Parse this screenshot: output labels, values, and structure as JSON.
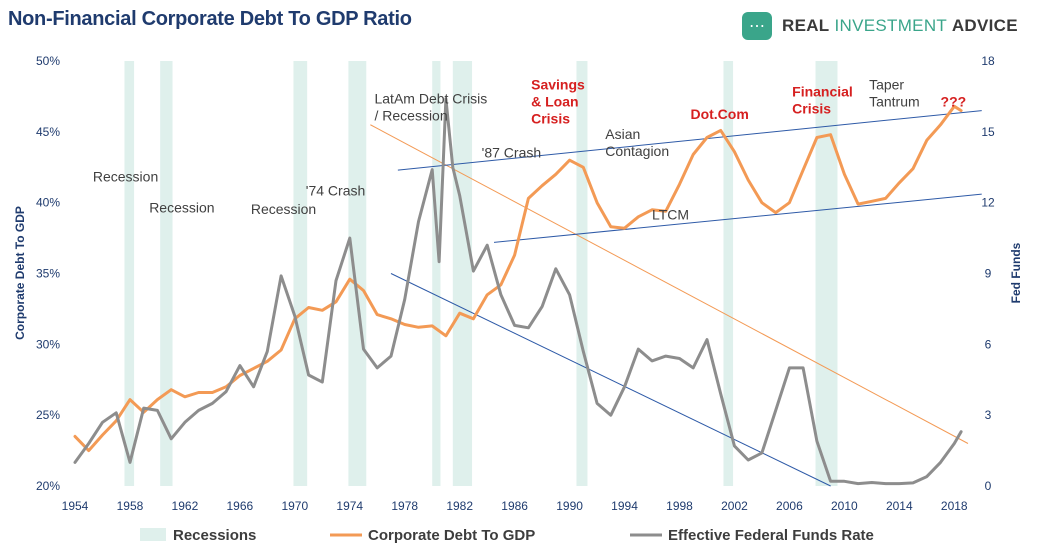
{
  "header": {
    "title": "Non-Financial Corporate Debt To GDP Ratio",
    "logo_text": "REAL INVESTMENT ADVICE",
    "logo_words": [
      "REAL",
      "INVESTMENT",
      "ADVICE"
    ],
    "logo_icon": "chat-bubble-icon",
    "brand_color": "#3aa58a"
  },
  "chart_data": {
    "type": "line",
    "title": "Non-Financial Corporate Debt To GDP Ratio",
    "x_ticks": [
      "1954",
      "1958",
      "1962",
      "1966",
      "1970",
      "1974",
      "1978",
      "1982",
      "1986",
      "1990",
      "1994",
      "1998",
      "2002",
      "2006",
      "2010",
      "2014",
      "2018"
    ],
    "xlim": [
      1954,
      2019
    ],
    "y_left_label": "Corporate Debt To GDP",
    "y_left_ticks": [
      "20%",
      "25%",
      "30%",
      "35%",
      "40%",
      "45%",
      "50%"
    ],
    "y_left_lim": [
      20,
      50
    ],
    "y_right_label": "Fed Funds",
    "y_right_ticks": [
      "0",
      "3",
      "6",
      "9",
      "12",
      "15",
      "18"
    ],
    "y_right_lim": [
      0,
      18
    ],
    "grid": false,
    "legend_position": "bottom",
    "colors": {
      "debt": "#f39a55",
      "fed": "#8d8d8d",
      "recession": "#dff0ec",
      "trend_orange": "#f39a55",
      "trend_blue": "#2e5aa7",
      "axis": "#1f3b6e",
      "annotation_red": "#d62020"
    },
    "legend": [
      "Recessions",
      "Corporate Debt To GDP",
      "Effective Federal Funds Rate"
    ],
    "recessions": [
      [
        1957.6,
        1958.3
      ],
      [
        1960.2,
        1961.1
      ],
      [
        1969.9,
        1970.9
      ],
      [
        1973.9,
        1975.2
      ],
      [
        1980.0,
        1980.6
      ],
      [
        1981.5,
        1982.9
      ],
      [
        1990.5,
        1991.3
      ],
      [
        2001.2,
        2001.9
      ],
      [
        2007.9,
        2009.5
      ]
    ],
    "series": [
      {
        "name": "Corporate Debt To GDP",
        "axis": "left",
        "points": [
          [
            1954,
            23.5
          ],
          [
            1955,
            22.5
          ],
          [
            1956,
            23.6
          ],
          [
            1957,
            24.6
          ],
          [
            1958,
            26.1
          ],
          [
            1959,
            25.2
          ],
          [
            1960,
            26.1
          ],
          [
            1961,
            26.8
          ],
          [
            1962,
            26.3
          ],
          [
            1963,
            26.6
          ],
          [
            1964,
            26.6
          ],
          [
            1965,
            27.0
          ],
          [
            1966,
            27.8
          ],
          [
            1967,
            28.3
          ],
          [
            1968,
            28.8
          ],
          [
            1969,
            29.6
          ],
          [
            1970,
            31.8
          ],
          [
            1971,
            32.6
          ],
          [
            1972,
            32.4
          ],
          [
            1973,
            33.0
          ],
          [
            1974,
            34.6
          ],
          [
            1975,
            33.8
          ],
          [
            1976,
            32.1
          ],
          [
            1977,
            31.8
          ],
          [
            1978,
            31.4
          ],
          [
            1979,
            31.2
          ],
          [
            1980,
            31.3
          ],
          [
            1981,
            30.6
          ],
          [
            1982,
            32.2
          ],
          [
            1983,
            31.8
          ],
          [
            1984,
            33.5
          ],
          [
            1985,
            34.2
          ],
          [
            1986,
            36.3
          ],
          [
            1987,
            40.3
          ],
          [
            1988,
            41.2
          ],
          [
            1989,
            42.0
          ],
          [
            1990,
            43.0
          ],
          [
            1991,
            42.5
          ],
          [
            1992,
            40.0
          ],
          [
            1993,
            38.3
          ],
          [
            1994,
            38.2
          ],
          [
            1995,
            39.0
          ],
          [
            1996,
            39.5
          ],
          [
            1997,
            39.4
          ],
          [
            1998,
            41.3
          ],
          [
            1999,
            43.4
          ],
          [
            2000,
            44.6
          ],
          [
            2001,
            45.1
          ],
          [
            2002,
            43.6
          ],
          [
            2003,
            41.6
          ],
          [
            2004,
            40.0
          ],
          [
            2005,
            39.3
          ],
          [
            2006,
            40.0
          ],
          [
            2007,
            42.3
          ],
          [
            2008,
            44.6
          ],
          [
            2009,
            44.8
          ],
          [
            2010,
            42.0
          ],
          [
            2011,
            39.9
          ],
          [
            2012,
            40.1
          ],
          [
            2013,
            40.3
          ],
          [
            2014,
            41.4
          ],
          [
            2015,
            42.4
          ],
          [
            2016,
            44.4
          ],
          [
            2017,
            45.5
          ],
          [
            2018,
            46.8
          ],
          [
            2018.5,
            46.5
          ]
        ]
      },
      {
        "name": "Effective Federal Funds Rate",
        "axis": "right",
        "points": [
          [
            1954,
            1.0
          ],
          [
            1955,
            1.8
          ],
          [
            1956,
            2.7
          ],
          [
            1957,
            3.1
          ],
          [
            1958,
            1.0
          ],
          [
            1959,
            3.3
          ],
          [
            1960,
            3.2
          ],
          [
            1961,
            2.0
          ],
          [
            1962,
            2.7
          ],
          [
            1963,
            3.2
          ],
          [
            1964,
            3.5
          ],
          [
            1965,
            4.0
          ],
          [
            1966,
            5.1
          ],
          [
            1967,
            4.2
          ],
          [
            1968,
            5.7
          ],
          [
            1969,
            8.9
          ],
          [
            1970,
            7.2
          ],
          [
            1971,
            4.7
          ],
          [
            1972,
            4.4
          ],
          [
            1973,
            8.7
          ],
          [
            1974,
            10.5
          ],
          [
            1975,
            5.8
          ],
          [
            1976,
            5.0
          ],
          [
            1977,
            5.5
          ],
          [
            1978,
            7.9
          ],
          [
            1979,
            11.2
          ],
          [
            1980,
            13.4
          ],
          [
            1980.5,
            9.5
          ],
          [
            1981,
            16.4
          ],
          [
            1981.5,
            13.5
          ],
          [
            1982,
            12.3
          ],
          [
            1983,
            9.1
          ],
          [
            1984,
            10.2
          ],
          [
            1985,
            8.1
          ],
          [
            1986,
            6.8
          ],
          [
            1987,
            6.7
          ],
          [
            1988,
            7.6
          ],
          [
            1989,
            9.2
          ],
          [
            1990,
            8.1
          ],
          [
            1991,
            5.7
          ],
          [
            1992,
            3.5
          ],
          [
            1993,
            3.0
          ],
          [
            1994,
            4.2
          ],
          [
            1995,
            5.8
          ],
          [
            1996,
            5.3
          ],
          [
            1997,
            5.5
          ],
          [
            1998,
            5.4
          ],
          [
            1999,
            5.0
          ],
          [
            2000,
            6.2
          ],
          [
            2001,
            3.9
          ],
          [
            2002,
            1.7
          ],
          [
            2003,
            1.1
          ],
          [
            2004,
            1.4
          ],
          [
            2005,
            3.2
          ],
          [
            2006,
            5.0
          ],
          [
            2007,
            5.0
          ],
          [
            2008,
            1.9
          ],
          [
            2009,
            0.2
          ],
          [
            2010,
            0.2
          ],
          [
            2011,
            0.1
          ],
          [
            2012,
            0.15
          ],
          [
            2013,
            0.1
          ],
          [
            2014,
            0.1
          ],
          [
            2015,
            0.13
          ],
          [
            2016,
            0.4
          ],
          [
            2017,
            1.0
          ],
          [
            2018,
            1.8
          ],
          [
            2018.5,
            2.3
          ]
        ]
      }
    ],
    "trendlines": [
      {
        "color": "#f39a55",
        "points": [
          [
            1975.5,
            45.5
          ],
          [
            2019,
            23.0
          ]
        ]
      },
      {
        "color": "#2e5aa7",
        "points": [
          [
            1977,
            35.0
          ],
          [
            2009,
            20.0
          ]
        ]
      },
      {
        "color": "#2e5aa7",
        "points": [
          [
            1977.5,
            42.3
          ],
          [
            2020,
            46.5
          ]
        ]
      },
      {
        "color": "#2e5aa7",
        "points": [
          [
            1984.5,
            37.2
          ],
          [
            2020,
            40.6
          ]
        ]
      }
    ],
    "annotations": [
      {
        "lines": [
          "Recession"
        ],
        "x": 1955.3,
        "y": 41.5,
        "color": "gray"
      },
      {
        "lines": [
          "Recession"
        ],
        "x": 1959.4,
        "y": 39.3,
        "color": "gray"
      },
      {
        "lines": [
          "Recession"
        ],
        "x": 1966.8,
        "y": 39.2,
        "color": "gray"
      },
      {
        "lines": [
          "'74 Crash"
        ],
        "x": 1970.8,
        "y": 40.5,
        "color": "gray"
      },
      {
        "lines": [
          "LatAm Debt Crisis",
          "/ Recession"
        ],
        "x": 1975.8,
        "y": 47.0,
        "color": "gray"
      },
      {
        "lines": [
          "'87 Crash"
        ],
        "x": 1983.6,
        "y": 43.2,
        "color": "gray"
      },
      {
        "lines": [
          "Savings",
          "& Loan",
          "Crisis"
        ],
        "x": 1987.2,
        "y": 48.0,
        "color": "red"
      },
      {
        "lines": [
          "Asian",
          "Contagion"
        ],
        "x": 1992.6,
        "y": 44.5,
        "color": "gray"
      },
      {
        "lines": [
          "LTCM"
        ],
        "x": 1996.0,
        "y": 38.8,
        "color": "gray"
      },
      {
        "lines": [
          "Dot.Com"
        ],
        "x": 1998.8,
        "y": 45.9,
        "color": "red"
      },
      {
        "lines": [
          "Financial",
          "Crisis"
        ],
        "x": 2006.2,
        "y": 47.5,
        "color": "red"
      },
      {
        "lines": [
          "Taper",
          "Tantrum"
        ],
        "x": 2011.8,
        "y": 48.0,
        "color": "gray"
      },
      {
        "lines": [
          "???"
        ],
        "x": 2017.0,
        "y": 46.8,
        "color": "red"
      }
    ]
  }
}
